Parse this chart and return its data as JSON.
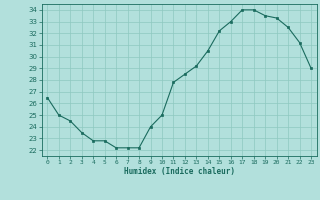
{
  "x": [
    0,
    1,
    2,
    3,
    4,
    5,
    6,
    7,
    8,
    9,
    10,
    11,
    12,
    13,
    14,
    15,
    16,
    17,
    18,
    19,
    20,
    21,
    22,
    23
  ],
  "y": [
    26.5,
    25.0,
    24.5,
    23.5,
    22.8,
    22.8,
    22.2,
    22.2,
    22.2,
    24.0,
    25.0,
    27.8,
    28.5,
    29.2,
    30.5,
    32.2,
    33.0,
    34.0,
    34.0,
    33.5,
    33.3,
    32.5,
    31.2,
    29.0
  ],
  "line_color": "#1a6b5e",
  "marker": "s",
  "marker_size": 2,
  "bg_color": "#b2e0dc",
  "grid_color": "#8ec8c0",
  "xlabel": "Humidex (Indice chaleur)",
  "ylabel_ticks": [
    22,
    23,
    24,
    25,
    26,
    27,
    28,
    29,
    30,
    31,
    32,
    33,
    34
  ],
  "xlim": [
    -0.5,
    23.5
  ],
  "ylim": [
    21.5,
    34.5
  ],
  "xticks": [
    0,
    1,
    2,
    3,
    4,
    5,
    6,
    7,
    8,
    9,
    10,
    11,
    12,
    13,
    14,
    15,
    16,
    17,
    18,
    19,
    20,
    21,
    22,
    23
  ]
}
